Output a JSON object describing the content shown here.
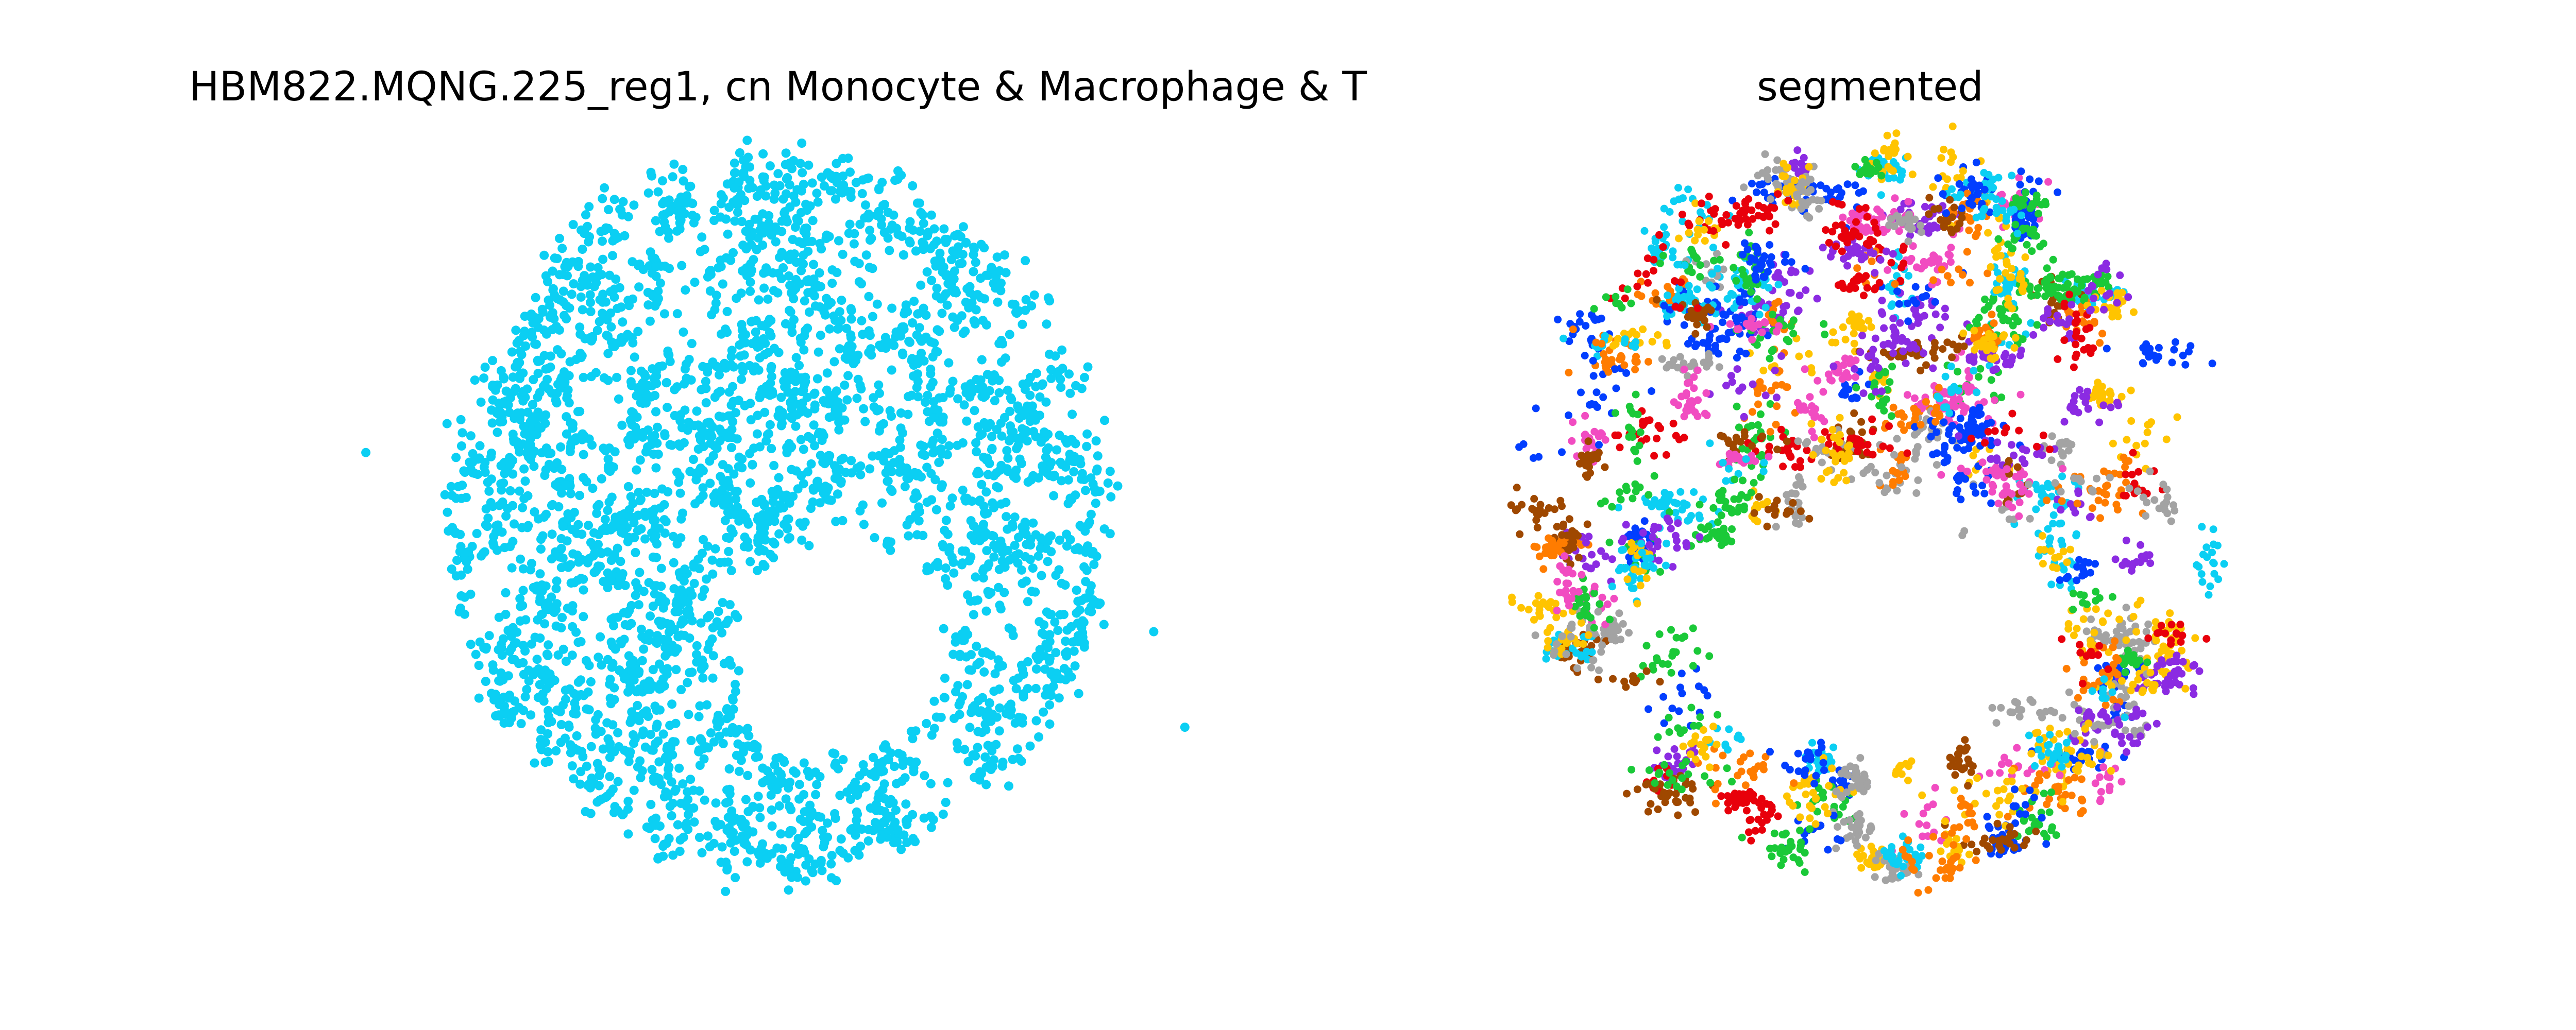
{
  "chart_data": [
    {
      "type": "scatter",
      "title": "HBM822.MQNG.225_reg1, cn Monocyte & Macrophage & T",
      "xlabel": "",
      "ylabel": "",
      "axes_visible": false,
      "grid": false,
      "xlim": [
        -2.05,
        2.05
      ],
      "ylim": [
        -1.7,
        1.48
      ],
      "series": [
        {
          "color": "#0bcff3",
          "points": [
            [
              -2.0,
              0.2
            ],
            [
              1.95,
              -0.95
            ],
            [
              1.8,
              -0.55
            ],
            [
              0.2,
              -1.55
            ],
            [
              -0.05,
              1.4
            ]
          ]
        }
      ],
      "density_outline": [
        [
          -1.2,
          -1.2
        ],
        [
          -1.6,
          -0.4
        ],
        [
          -1.5,
          0.5
        ],
        [
          -1.0,
          1.2
        ],
        [
          0.0,
          1.45
        ],
        [
          1.0,
          1.2
        ],
        [
          1.5,
          0.5
        ],
        [
          1.6,
          -0.5
        ],
        [
          1.2,
          -1.2
        ],
        [
          0.0,
          -1.55
        ]
      ],
      "empty_region": {
        "center": [
          0.3,
          -0.6
        ],
        "radius": [
          0.55,
          0.5
        ]
      }
    },
    {
      "type": "scatter",
      "title": "segmented",
      "xlabel": "",
      "ylabel": "",
      "axes_visible": false,
      "grid": false,
      "xlim": [
        -1.95,
        1.95
      ],
      "ylim": [
        -1.7,
        1.48
      ],
      "palette": [
        "#0bcff3",
        "#e8000b",
        "#023eff",
        "#ff7c00",
        "#1ac938",
        "#8b2be2",
        "#9f4800",
        "#f14cc1",
        "#a3a3a3",
        "#ffc400"
      ],
      "cluster_count": 260,
      "empty_region": {
        "center": [
          0.0,
          -0.55
        ],
        "radius": [
          0.9,
          0.55
        ]
      }
    }
  ]
}
